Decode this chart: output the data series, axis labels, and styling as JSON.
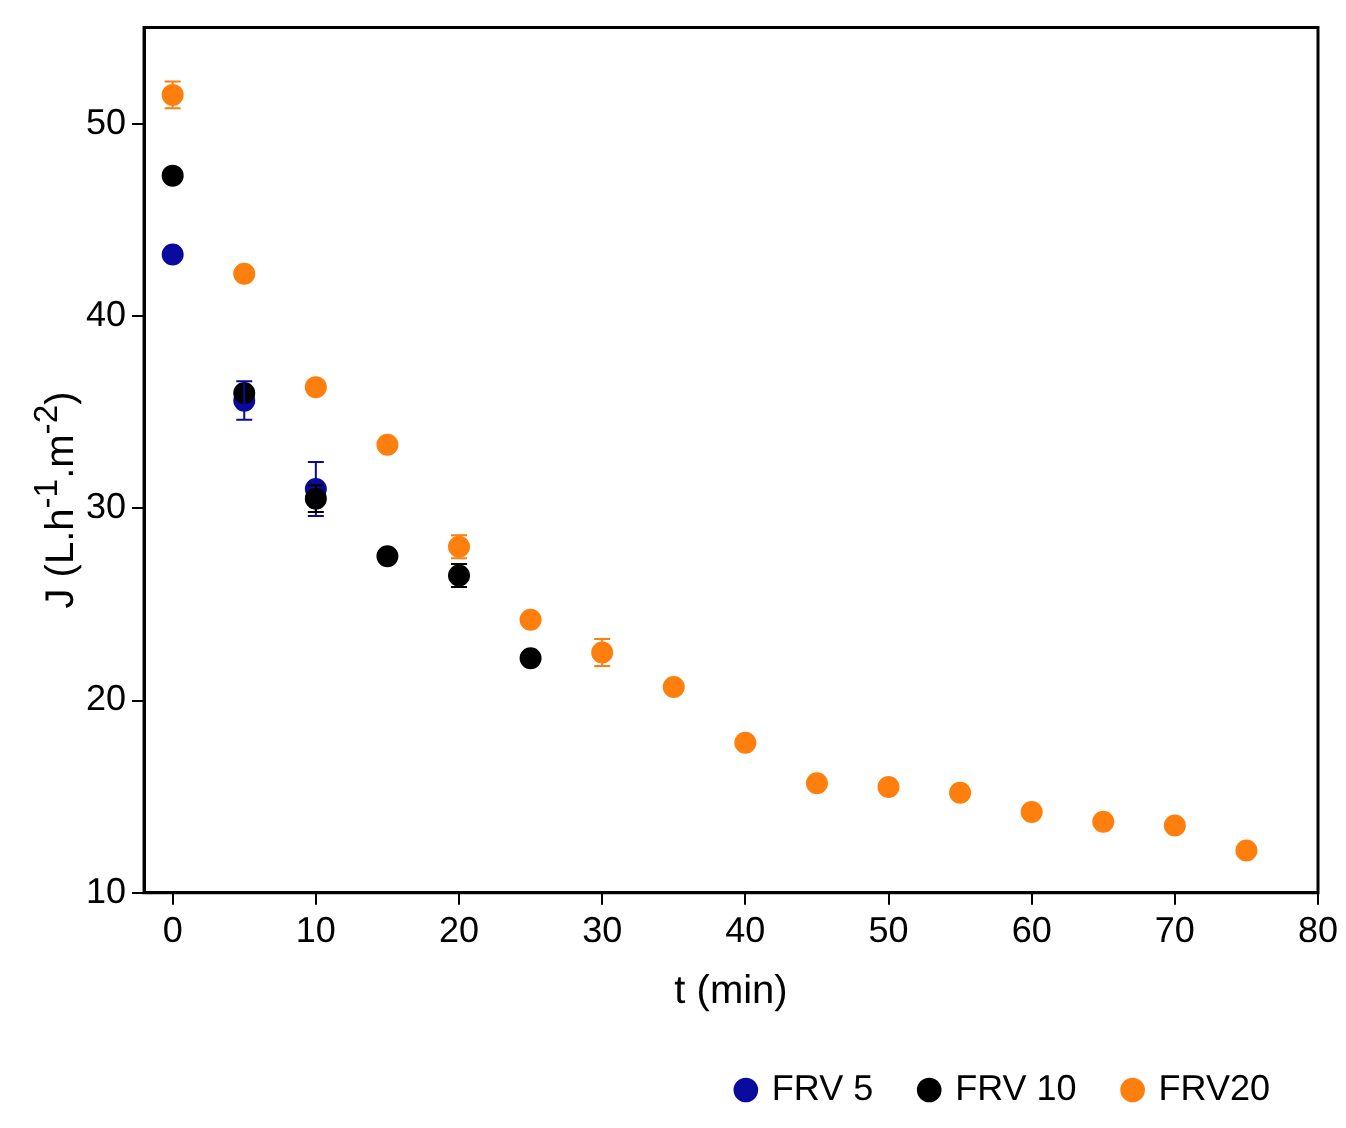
{
  "chart_data": {
    "type": "scatter",
    "xlabel": "t (min)",
    "ylabel": "J (L.h$^{-1}$.m$^{-2}$)",
    "xlim": [
      -2,
      80
    ],
    "xticks": [
      0,
      10,
      20,
      30,
      40,
      50,
      60,
      70,
      80
    ],
    "ylim": [
      10,
      55
    ],
    "yticks": [
      10,
      20,
      30,
      40,
      50
    ],
    "grid": false,
    "legend": "bottom",
    "marker": "circle",
    "series": [
      {
        "name": "FRV 5",
        "color": "#0a0a9e",
        "x": [
          0,
          5,
          10
        ],
        "values": [
          43.2,
          35.6,
          31.0
        ],
        "errors": [
          null,
          1.0,
          1.4
        ]
      },
      {
        "name": "FRV 10",
        "color": "#000000",
        "x": [
          0,
          5,
          10,
          15,
          20,
          25
        ],
        "values": [
          47.3,
          36.0,
          30.5,
          27.5,
          26.5,
          22.2
        ],
        "errors": [
          null,
          null,
          0.7,
          null,
          0.6,
          null
        ]
      },
      {
        "name": "FRV20",
        "color": "#ff7f0e",
        "x": [
          0,
          5,
          10,
          15,
          20,
          25,
          30,
          35,
          40,
          45,
          50,
          55,
          60,
          65,
          70,
          75
        ],
        "values": [
          51.5,
          42.2,
          36.3,
          33.3,
          28.0,
          24.2,
          22.5,
          20.7,
          17.8,
          15.7,
          15.5,
          15.2,
          14.2,
          13.7,
          13.5,
          12.2
        ],
        "errors": [
          0.7,
          null,
          null,
          null,
          0.6,
          null,
          0.7,
          null,
          null,
          null,
          null,
          null,
          null,
          null,
          null,
          null
        ]
      }
    ]
  }
}
